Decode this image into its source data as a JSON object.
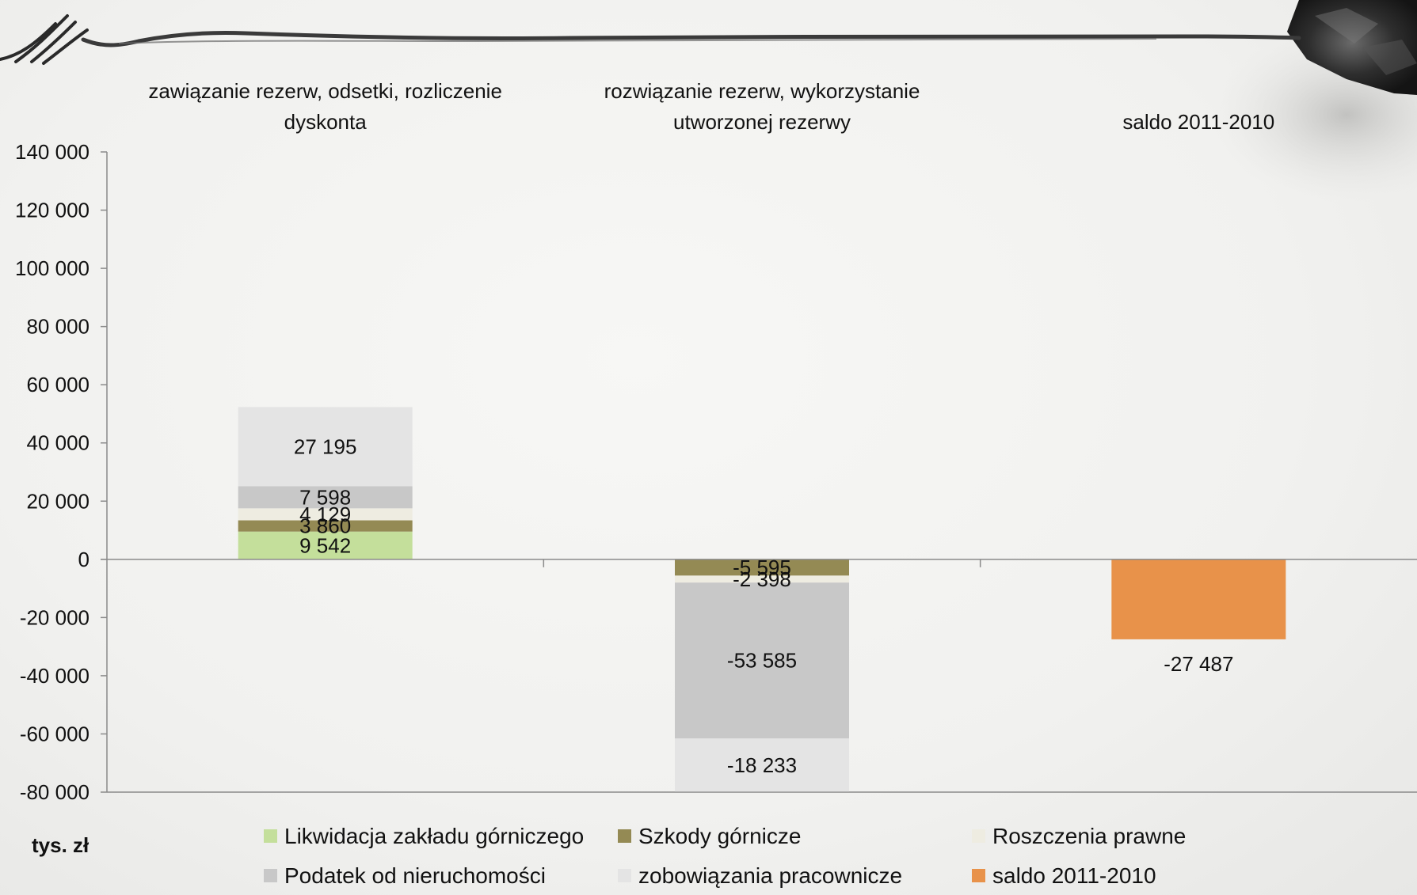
{
  "chart_data": {
    "type": "bar",
    "stacked": true,
    "categories": [
      [
        "zawiązanie rezerw, odsetki, rozliczenie",
        "dyskonta"
      ],
      [
        "rozwiązanie rezerw, wykorzystanie",
        "utworzonej rezerwy"
      ],
      [
        "saldo 2011-2010"
      ]
    ],
    "series": [
      {
        "name": "Likwidacja zakładu górniczego",
        "color": "#c4df9b",
        "values": [
          9542,
          0,
          null
        ],
        "labels": [
          "9 542",
          "",
          ""
        ]
      },
      {
        "name": "Szkody górnicze",
        "color": "#948a54",
        "values": [
          3860,
          -5595,
          null
        ],
        "labels": [
          "3 860",
          "-5 595",
          ""
        ]
      },
      {
        "name": "Roszczenia prawne",
        "color": "#eeece1",
        "values": [
          4129,
          -2398,
          null
        ],
        "labels": [
          "4 129",
          "-2 398",
          ""
        ]
      },
      {
        "name": "Podatek od nieruchomości",
        "color": "#c8c8c8",
        "values": [
          7598,
          -53585,
          null
        ],
        "labels": [
          "7 598",
          "-53 585",
          ""
        ]
      },
      {
        "name": "zobowiązania pracownicze",
        "color": "#e4e4e4",
        "values": [
          27195,
          -18233,
          null
        ],
        "labels": [
          "27 195",
          "-18 233",
          ""
        ]
      },
      {
        "name": "saldo 2011-2010",
        "color": "#e8924a",
        "values": [
          null,
          null,
          -27487
        ],
        "labels": [
          "",
          "",
          "-27 487"
        ]
      }
    ],
    "ylim": [
      -80000,
      140000
    ],
    "y_ticks": [
      {
        "value": 140000,
        "label": "140 000"
      },
      {
        "value": 120000,
        "label": "120 000"
      },
      {
        "value": 100000,
        "label": "100 000"
      },
      {
        "value": 80000,
        "label": "80 000"
      },
      {
        "value": 60000,
        "label": "60 000"
      },
      {
        "value": 40000,
        "label": "40 000"
      },
      {
        "value": 20000,
        "label": "20 000"
      },
      {
        "value": 0,
        "label": "0"
      },
      {
        "value": -20000,
        "label": "-20 000"
      },
      {
        "value": -40000,
        "label": "-40 000"
      },
      {
        "value": -60000,
        "label": "-60 000"
      },
      {
        "value": -80000,
        "label": "-80 000"
      }
    ],
    "ylabel": "tys. zł",
    "legend_position": "bottom",
    "grid": false
  }
}
